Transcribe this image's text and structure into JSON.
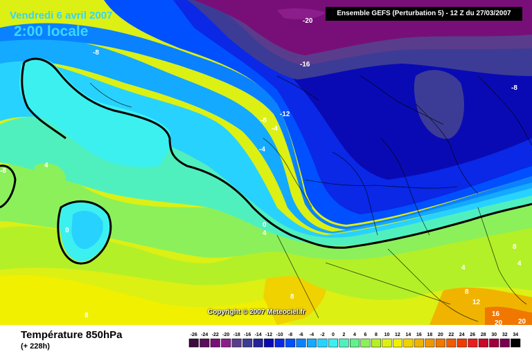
{
  "header": {
    "date": "Vendredi 6 avril 2007",
    "time": "2:00 locale",
    "model_info": "Ensemble GEFS (Perturbation 5)  -  12 Z du 27/03/2007"
  },
  "copyright": "Copyright © 2007 Meteociel.fr",
  "footer": {
    "title": "Température 850hPa",
    "subtitle": "(+ 228h)"
  },
  "legend": {
    "ticks": [
      "-26",
      "-24",
      "-22",
      "-20",
      "-18",
      "-16",
      "-14",
      "-12",
      "-10",
      "-8",
      "-6",
      "-4",
      "-2",
      "0",
      "2",
      "4",
      "6",
      "8",
      "10",
      "12",
      "14",
      "16",
      "18",
      "20",
      "22",
      "24",
      "26",
      "28",
      "30",
      "32",
      "34"
    ],
    "colors": [
      "#3c0a3c",
      "#5a0f5a",
      "#780f78",
      "#8c1e8c",
      "#5a3c8c",
      "#3c3c96",
      "#23239b",
      "#0a0ab4",
      "#0a28e6",
      "#0050ff",
      "#0a82ff",
      "#14aaff",
      "#28d2ff",
      "#3cf0f0",
      "#50f0be",
      "#64f08c",
      "#8cf05a",
      "#b4f028",
      "#dcf014",
      "#f0f000",
      "#f0d200",
      "#f0b400",
      "#f09600",
      "#f07800",
      "#f05a00",
      "#f03c00",
      "#e61e1e",
      "#c80a28",
      "#a0003c",
      "#780050",
      "#000000"
    ]
  },
  "map_labels": [
    {
      "text": "-20",
      "color": "white"
    },
    {
      "text": "-16",
      "color": "white"
    },
    {
      "text": "-12",
      "color": "white"
    },
    {
      "text": "-8",
      "color": "white"
    },
    {
      "text": "-8",
      "color": "white"
    },
    {
      "text": "-8",
      "color": "white"
    },
    {
      "text": "-4",
      "color": "white"
    },
    {
      "text": "-4",
      "color": "white"
    },
    {
      "text": "-8",
      "color": "white"
    },
    {
      "text": "4",
      "color": "white"
    },
    {
      "text": "0",
      "color": "white"
    },
    {
      "text": "0",
      "color": "white"
    },
    {
      "text": "4",
      "color": "white"
    },
    {
      "text": "8",
      "color": "white"
    },
    {
      "text": "8",
      "color": "white"
    },
    {
      "text": "12",
      "color": "white"
    },
    {
      "text": "16",
      "color": "white"
    },
    {
      "text": "20",
      "color": "white"
    },
    {
      "text": "20",
      "color": "white"
    },
    {
      "text": "8",
      "color": "white"
    },
    {
      "text": "4",
      "color": "white"
    },
    {
      "text": "8",
      "color": "white"
    },
    {
      "text": "4",
      "color": "white"
    }
  ]
}
